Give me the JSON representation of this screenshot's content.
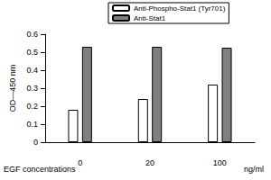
{
  "chart_data": {
    "type": "bar",
    "categories": [
      "0",
      "20",
      "100"
    ],
    "series": [
      {
        "name": "Anti-Phospho-Stat1 (Tyr701)",
        "color": "#ffffff",
        "values": [
          0.18,
          0.24,
          0.32
        ]
      },
      {
        "name": "Anti-Stat1",
        "color": "#7f7f7f",
        "values": [
          0.53,
          0.53,
          0.525
        ]
      }
    ],
    "ylabel": "OD—450 nm",
    "xlabel": "EGF concentrations",
    "annotations": [
      "ng/ml"
    ],
    "ylim": [
      0,
      0.6
    ],
    "yticks": [
      0,
      0.1,
      0.2,
      0.3,
      0.4,
      0.5,
      0.6
    ],
    "grid": false,
    "legend": "top"
  }
}
